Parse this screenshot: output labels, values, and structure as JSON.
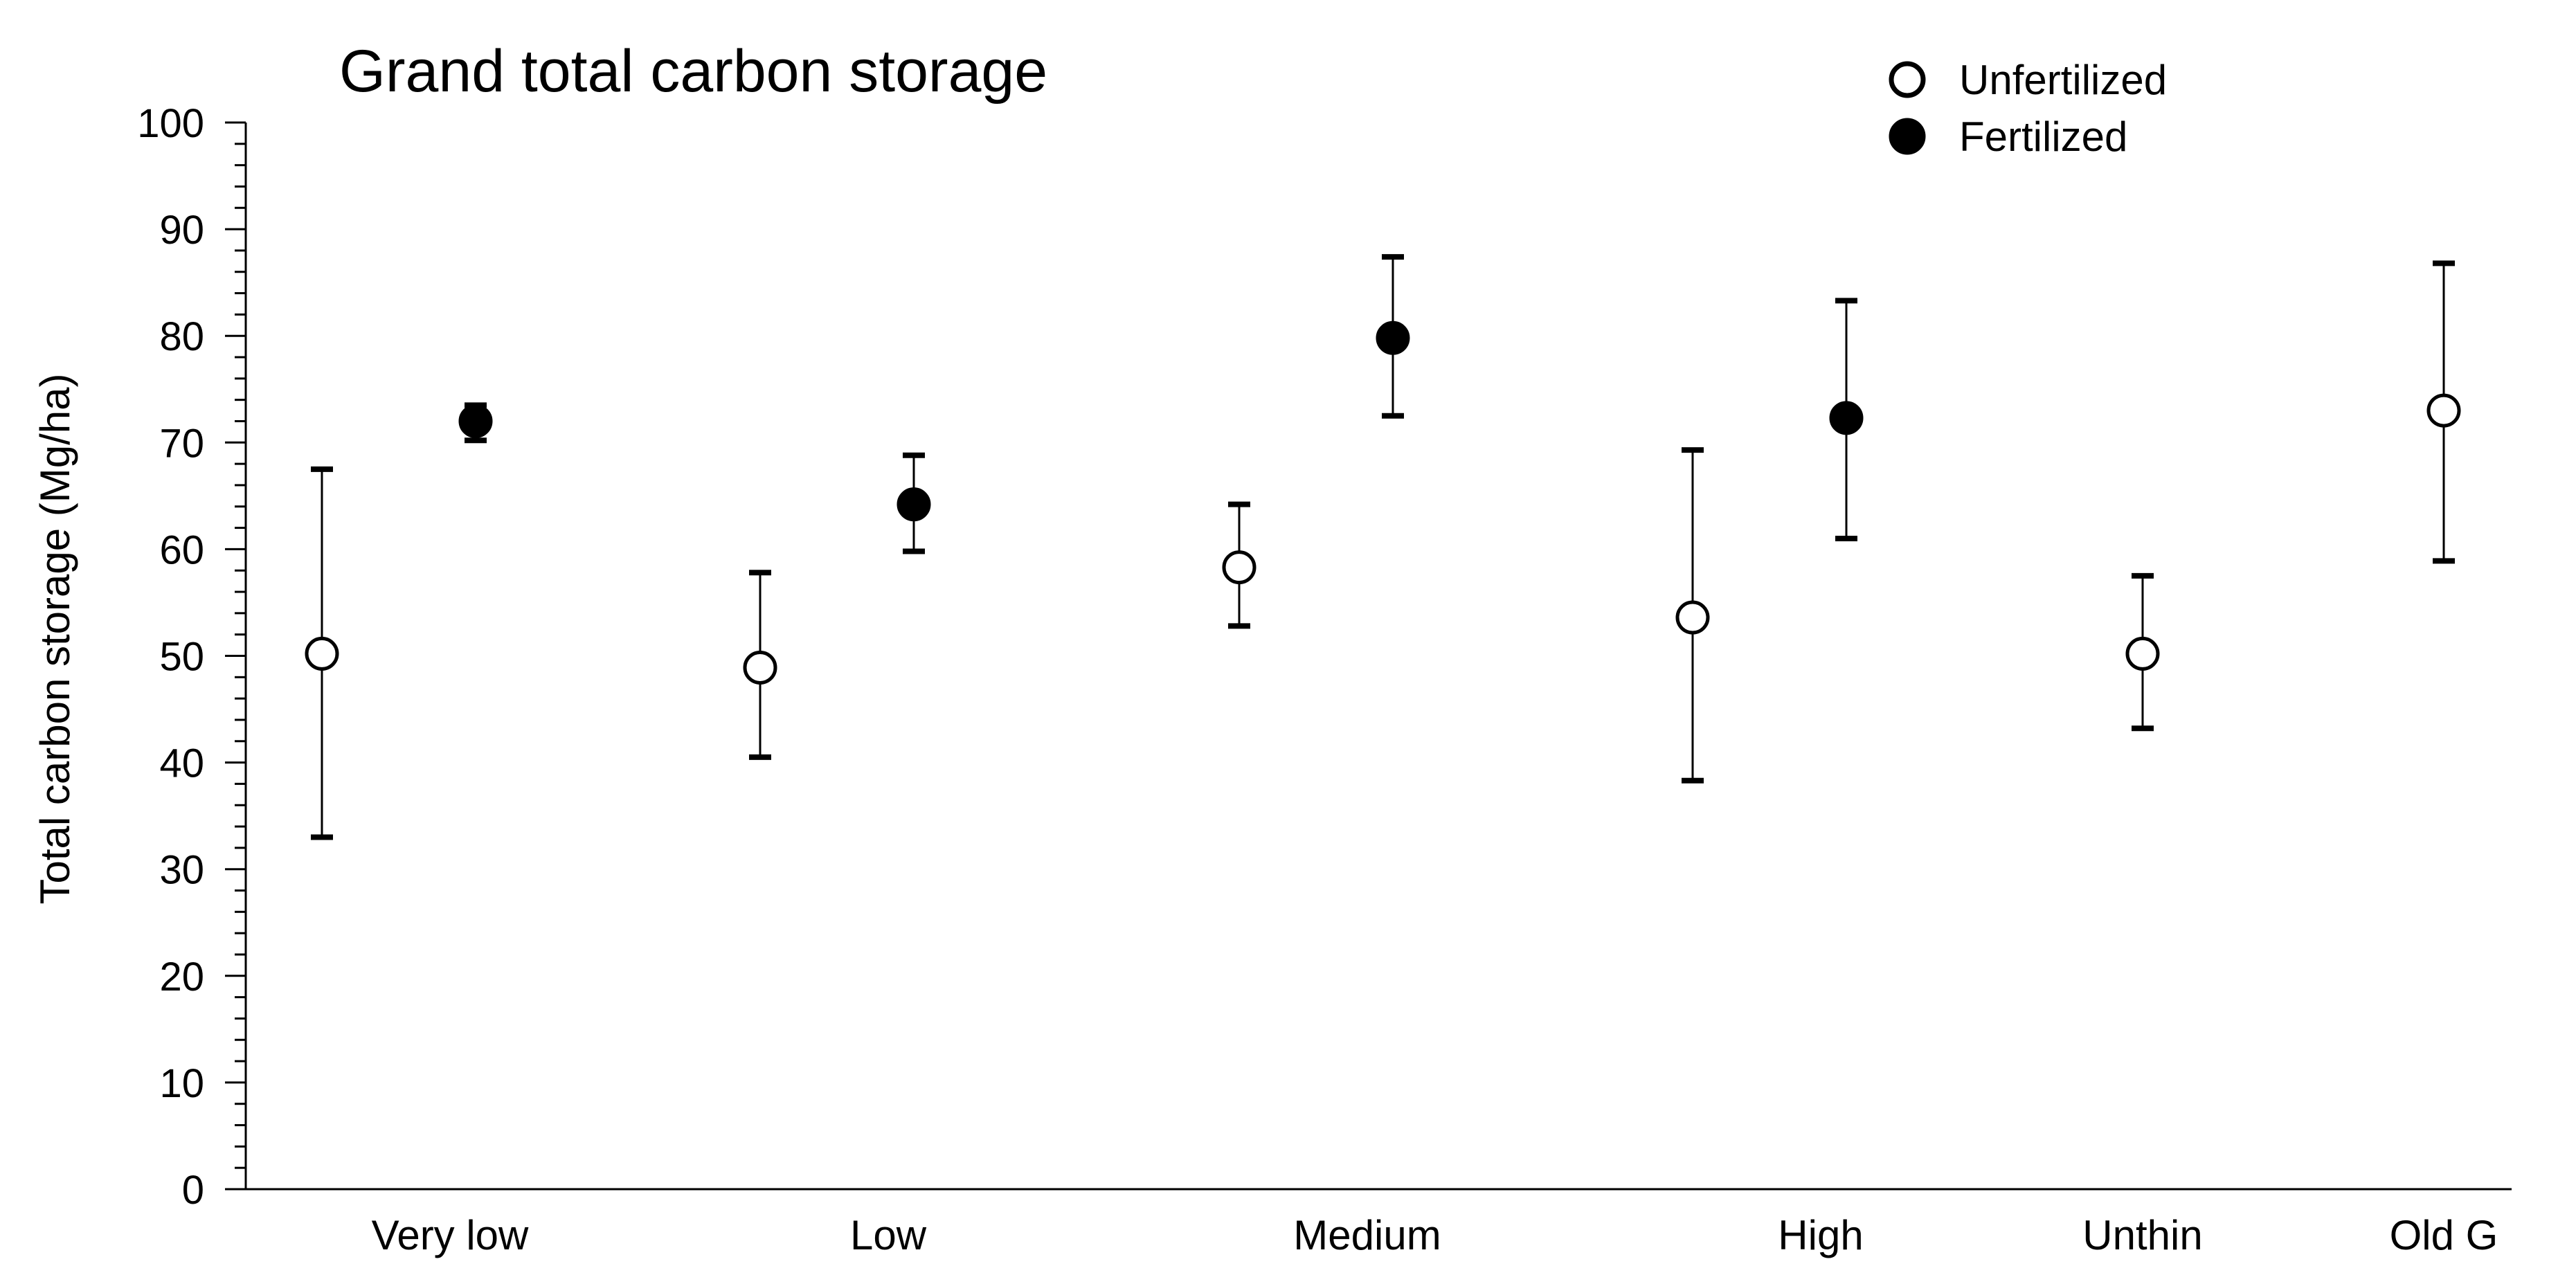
{
  "chart_data": {
    "type": "scatter",
    "title": "Grand total carbon storage",
    "xlabel": "",
    "ylabel": "Total carbon storage (Mg/ha)",
    "ylim": [
      0,
      100
    ],
    "y_major_ticks": [
      "0",
      "10",
      "20",
      "30",
      "40",
      "50",
      "60",
      "70",
      "80",
      "90",
      "100"
    ],
    "categories": [
      "Very low",
      "Low",
      "Medium",
      "High",
      "Unthin",
      "Old G"
    ],
    "grid": false,
    "legend_position": "top-right",
    "series": [
      {
        "name": "Unfertilized",
        "marker": "open-circle",
        "color": "#000000",
        "points": [
          {
            "category": "Very low",
            "y": 50.2,
            "err_low": 33.0,
            "err_high": 67.5
          },
          {
            "category": "Low",
            "y": 48.9,
            "err_low": 40.5,
            "err_high": 57.8
          },
          {
            "category": "Medium",
            "y": 58.3,
            "err_low": 52.8,
            "err_high": 64.2
          },
          {
            "category": "High",
            "y": 53.6,
            "err_low": 38.3,
            "err_high": 69.3
          },
          {
            "category": "Unthin",
            "y": 50.2,
            "err_low": 43.2,
            "err_high": 57.5
          },
          {
            "category": "Old G",
            "y": 73.0,
            "err_low": 58.9,
            "err_high": 86.8
          }
        ]
      },
      {
        "name": "Fertilized",
        "marker": "filled-circle",
        "color": "#000000",
        "points": [
          {
            "category": "Very low",
            "y": 72.0,
            "err_low": 70.2,
            "err_high": 73.5
          },
          {
            "category": "Low",
            "y": 64.2,
            "err_low": 59.8,
            "err_high": 68.8
          },
          {
            "category": "Medium",
            "y": 79.8,
            "err_low": 72.5,
            "err_high": 87.4
          },
          {
            "category": "High",
            "y": 72.3,
            "err_low": 61.0,
            "err_high": 83.3
          }
        ]
      }
    ]
  }
}
